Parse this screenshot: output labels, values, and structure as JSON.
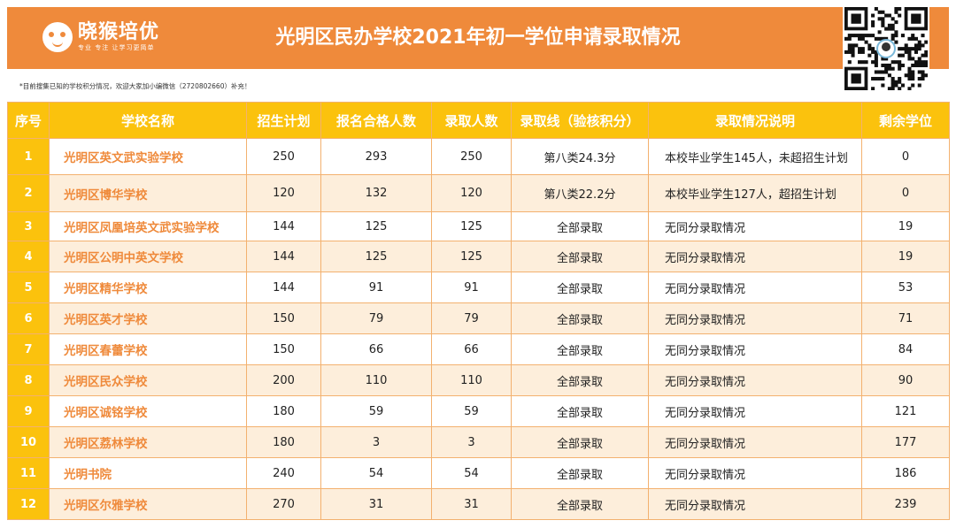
{
  "header": {
    "logo_name": "晓猴培优",
    "logo_slogan": "专业 专注 让学习更简单",
    "title": "光明区民办学校2021年初一学位申请录取情况"
  },
  "note": "*目前搜集已知的学校积分情况，欢迎大家加小编微信（2720802660）补充！",
  "colors": {
    "header_bg": "#ef8a3b",
    "table_header_bg": "#fbc20d",
    "school_text": "#ef8a3b",
    "row_alt_bg": "#fdeedb"
  },
  "table": {
    "columns": [
      "序号",
      "学校名称",
      "招生计划",
      "报名合格人数",
      "录取人数",
      "录取线（验核积分）",
      "录取情况说明",
      "剩余学位"
    ],
    "rows": [
      [
        "1",
        "光明区英文武实验学校",
        "250",
        "293",
        "250",
        "第八类24.3分",
        "本校毕业学生145人，未超招生计划",
        "0"
      ],
      [
        "2",
        "光明区博华学校",
        "120",
        "132",
        "120",
        "第八类22.2分",
        "本校毕业学生127人，超招生计划",
        "0"
      ],
      [
        "3",
        "光明区凤凰培英文武实验学校",
        "144",
        "125",
        "125",
        "全部录取",
        "无同分录取情况",
        "19"
      ],
      [
        "4",
        "光明区公明中英文学校",
        "144",
        "125",
        "125",
        "全部录取",
        "无同分录取情况",
        "19"
      ],
      [
        "5",
        "光明区精华学校",
        "144",
        "91",
        "91",
        "全部录取",
        "无同分录取情况",
        "53"
      ],
      [
        "6",
        "光明区英才学校",
        "150",
        "79",
        "79",
        "全部录取",
        "无同分录取情况",
        "71"
      ],
      [
        "7",
        "光明区春蕾学校",
        "150",
        "66",
        "66",
        "全部录取",
        "无同分录取情况",
        "84"
      ],
      [
        "8",
        "光明区民众学校",
        "200",
        "110",
        "110",
        "全部录取",
        "无同分录取情况",
        "90"
      ],
      [
        "9",
        "光明区诚铭学校",
        "180",
        "59",
        "59",
        "全部录取",
        "无同分录取情况",
        "121"
      ],
      [
        "10",
        "光明区荔林学校",
        "180",
        "3",
        "3",
        "全部录取",
        "无同分录取情况",
        "177"
      ],
      [
        "11",
        "光明书院",
        "240",
        "54",
        "54",
        "全部录取",
        "无同分录取情况",
        "186"
      ],
      [
        "12",
        "光明区尔雅学校",
        "270",
        "31",
        "31",
        "全部录取",
        "无同分录取情况",
        "239"
      ]
    ]
  }
}
